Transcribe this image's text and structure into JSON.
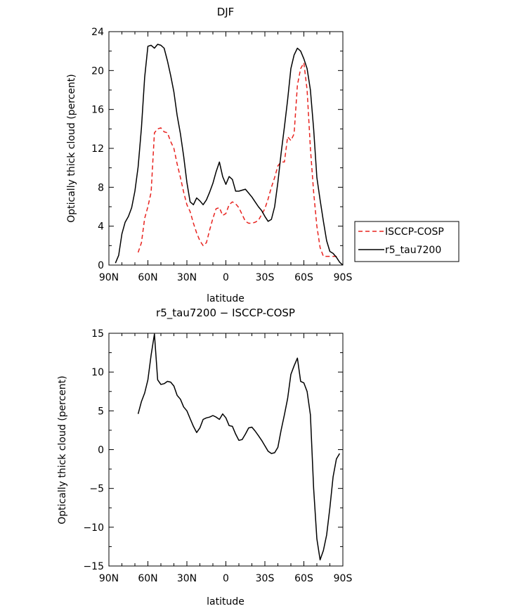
{
  "chart_data": [
    {
      "type": "line",
      "title": "DJF",
      "xlabel": "latitude",
      "ylabel": "Optically thick cloud (percent)",
      "xlim": [
        90,
        -90
      ],
      "ylim": [
        0,
        24
      ],
      "xticks": [
        90,
        60,
        30,
        0,
        -30,
        -60,
        -90
      ],
      "xtick_labels": [
        "90N",
        "60N",
        "30N",
        "0",
        "30S",
        "60S",
        "90S"
      ],
      "yticks": [
        0,
        4,
        8,
        12,
        16,
        20,
        24
      ],
      "ytick_labels": [
        "0",
        "4",
        "8",
        "12",
        "16",
        "20",
        "24"
      ],
      "legend": {
        "placement": "right",
        "entries": [
          "ISCCP-COSP",
          "r5_tau7200"
        ]
      },
      "series": [
        {
          "name": "ISCCP-COSP",
          "color": "#e8231f",
          "dash": "dashed",
          "x": [
            67.5,
            65,
            62.5,
            60,
            57.5,
            55,
            52.5,
            50,
            47.5,
            45,
            42.5,
            40,
            37.5,
            35,
            32.5,
            30,
            27.5,
            25,
            22.5,
            20,
            17.5,
            15,
            12.5,
            10,
            7.5,
            5,
            2.5,
            0,
            -2.5,
            -5,
            -7.5,
            -10,
            -12.5,
            -15,
            -17.5,
            -20,
            -22.5,
            -25,
            -27.5,
            -30,
            -32.5,
            -35,
            -37.5,
            -40,
            -42.5,
            -45,
            -47.5,
            -50,
            -52.5,
            -55,
            -57.5,
            -60,
            -62.5,
            -65,
            -67.5,
            -70,
            -72.5,
            -75,
            -77.5,
            -80,
            -82.5,
            -85,
            -87.5
          ],
          "y": [
            1.3,
            2.3,
            4.8,
            6.0,
            7.5,
            13.6,
            14.0,
            14.1,
            13.7,
            13.6,
            12.7,
            12.0,
            10.4,
            9.0,
            7.5,
            6.2,
            5.5,
            4.3,
            3.3,
            2.5,
            2.0,
            2.3,
            3.6,
            4.8,
            5.8,
            5.9,
            5.1,
            5.3,
            6.2,
            6.5,
            6.3,
            5.9,
            5.2,
            4.5,
            4.3,
            4.3,
            4.4,
            4.6,
            5.2,
            5.8,
            6.8,
            8.0,
            9.0,
            10.2,
            10.6,
            10.6,
            13.2,
            12.8,
            13.5,
            18.5,
            20.2,
            20.8,
            18.0,
            12.0,
            7.5,
            4.0,
            1.8,
            0.9,
            0.9,
            0.9,
            0.9,
            0.9,
            0.9
          ]
        },
        {
          "name": "r5_tau7200",
          "color": "#000000",
          "dash": "solid",
          "x": [
            85,
            82.5,
            80,
            77.5,
            75,
            72.5,
            70,
            67.5,
            65,
            62.5,
            60,
            57.5,
            55,
            52.5,
            50,
            47.5,
            45,
            42.5,
            40,
            37.5,
            35,
            32.5,
            30,
            27.5,
            25,
            22.5,
            20,
            17.5,
            15,
            12.5,
            10,
            7.5,
            5,
            2.5,
            0,
            -2.5,
            -5,
            -7.5,
            -10,
            -12.5,
            -15,
            -17.5,
            -20,
            -22.5,
            -25,
            -27.5,
            -30,
            -32.5,
            -35,
            -37.5,
            -40,
            -42.5,
            -45,
            -47.5,
            -50,
            -52.5,
            -55,
            -57.5,
            -60,
            -62.5,
            -65,
            -67.5,
            -70,
            -72.5,
            -75,
            -77.5,
            -80,
            -82.5,
            -85,
            -87.5,
            -90
          ],
          "y": [
            0.2,
            1.0,
            3.2,
            4.4,
            5.0,
            5.9,
            7.6,
            10.1,
            14.1,
            19.3,
            22.5,
            22.6,
            22.3,
            22.7,
            22.6,
            22.3,
            21.0,
            19.5,
            17.8,
            15.4,
            13.5,
            11.2,
            8.5,
            6.5,
            6.2,
            6.9,
            6.6,
            6.2,
            6.7,
            7.5,
            8.4,
            9.6,
            10.6,
            9.1,
            8.3,
            9.1,
            8.8,
            7.6,
            7.6,
            7.7,
            7.8,
            7.4,
            7.0,
            6.5,
            6.0,
            5.6,
            5.0,
            4.5,
            4.7,
            6.0,
            8.5,
            11.5,
            14.2,
            17.0,
            20.2,
            21.6,
            22.3,
            22.0,
            21.2,
            20.2,
            18.0,
            14.0,
            9.0,
            6.7,
            4.5,
            2.5,
            1.4,
            1.2,
            0.8,
            0.3,
            0.0
          ]
        }
      ]
    },
    {
      "type": "line",
      "title": "r5_tau7200 − ISCCP-COSP",
      "xlabel": "latitude",
      "ylabel": "Optically thick cloud (percent)",
      "xlim": [
        90,
        -90
      ],
      "ylim": [
        -15,
        15
      ],
      "xticks": [
        90,
        60,
        30,
        0,
        -30,
        -60,
        -90
      ],
      "xtick_labels": [
        "90N",
        "60N",
        "30N",
        "0",
        "30S",
        "60S",
        "90S"
      ],
      "yticks": [
        -15,
        -10,
        -5,
        0,
        5,
        10,
        15
      ],
      "ytick_labels": [
        "−15",
        "−10",
        "−5",
        "0",
        "5",
        "10",
        "15"
      ],
      "series": [
        {
          "color": "#000000",
          "dash": "solid",
          "x": [
            67.5,
            65,
            62.5,
            60,
            57.5,
            55,
            52.5,
            50,
            47.5,
            45,
            42.5,
            40,
            37.5,
            35,
            32.5,
            30,
            27.5,
            25,
            22.5,
            20,
            17.5,
            15,
            12.5,
            10,
            7.5,
            5,
            2.5,
            0,
            -2.5,
            -5,
            -7.5,
            -10,
            -12.5,
            -15,
            -17.5,
            -20,
            -22.5,
            -25,
            -27.5,
            -30,
            -32.5,
            -35,
            -37.5,
            -40,
            -42.5,
            -45,
            -47.5,
            -50,
            -52.5,
            -55,
            -57.5,
            -60,
            -62.5,
            -65,
            -67.5,
            -70,
            -72.5,
            -75,
            -77.5,
            -80,
            -82.5,
            -85,
            -87.5
          ],
          "y": [
            4.6,
            6.2,
            7.3,
            9.0,
            12.2,
            14.9,
            9.0,
            8.4,
            8.5,
            8.8,
            8.7,
            8.2,
            7.0,
            6.5,
            5.5,
            5.0,
            4.0,
            3.0,
            2.2,
            2.8,
            3.9,
            4.1,
            4.2,
            4.4,
            4.2,
            3.9,
            4.6,
            4.1,
            3.1,
            3.0,
            2.0,
            1.2,
            1.3,
            2.0,
            2.8,
            2.9,
            2.4,
            1.8,
            1.2,
            0.5,
            -0.2,
            -0.5,
            -0.4,
            0.3,
            2.5,
            4.5,
            6.6,
            9.7,
            10.8,
            11.8,
            8.8,
            8.6,
            7.5,
            4.5,
            -5.0,
            -11.5,
            -14.2,
            -13.0,
            -11.0,
            -7.5,
            -3.5,
            -1.2,
            -0.5
          ]
        }
      ]
    }
  ]
}
